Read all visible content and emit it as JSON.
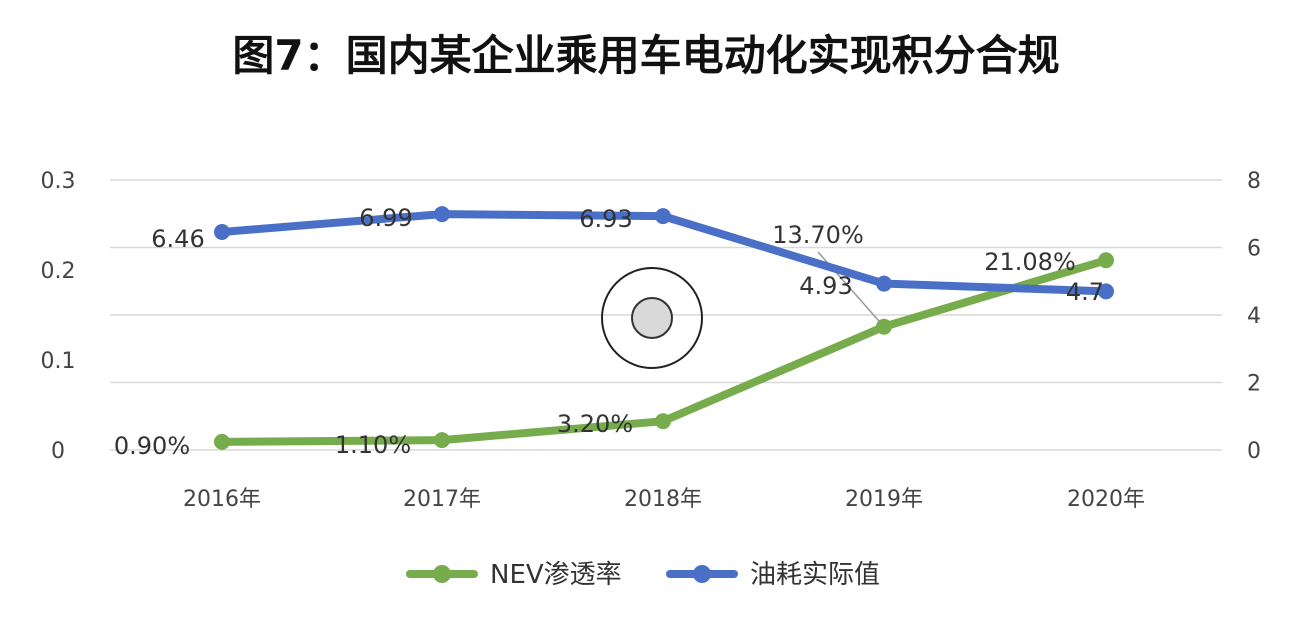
{
  "title": "图7：国内某企业乘用车电动化实现积分合规",
  "chart_data": {
    "type": "line",
    "categories": [
      "2016年",
      "2017年",
      "2018年",
      "2019年",
      "2020年"
    ],
    "y_left": {
      "ticks": [
        "0",
        "0.1",
        "0.2",
        "0.3"
      ],
      "ylim": [
        0,
        0.3
      ]
    },
    "y_right": {
      "ticks": [
        "0",
        "2",
        "4",
        "6",
        "8"
      ],
      "ylim": [
        0,
        8
      ]
    },
    "grid": true,
    "legend_position": "bottom",
    "series": [
      {
        "name": "NEV渗透率",
        "axis": "left",
        "color": "#77AC4C",
        "values": [
          0.009,
          0.011,
          0.032,
          0.137,
          0.2108
        ],
        "labels": [
          "0.90%",
          "1.10%",
          "3.20%",
          "13.70%",
          "21.08%"
        ]
      },
      {
        "name": "油耗实际值",
        "axis": "right",
        "color": "#4A6FC7",
        "values": [
          6.46,
          6.99,
          6.93,
          4.93,
          4.7
        ],
        "labels": [
          "6.46",
          "6.99",
          "6.93",
          "4.93",
          "4.7"
        ]
      }
    ]
  }
}
